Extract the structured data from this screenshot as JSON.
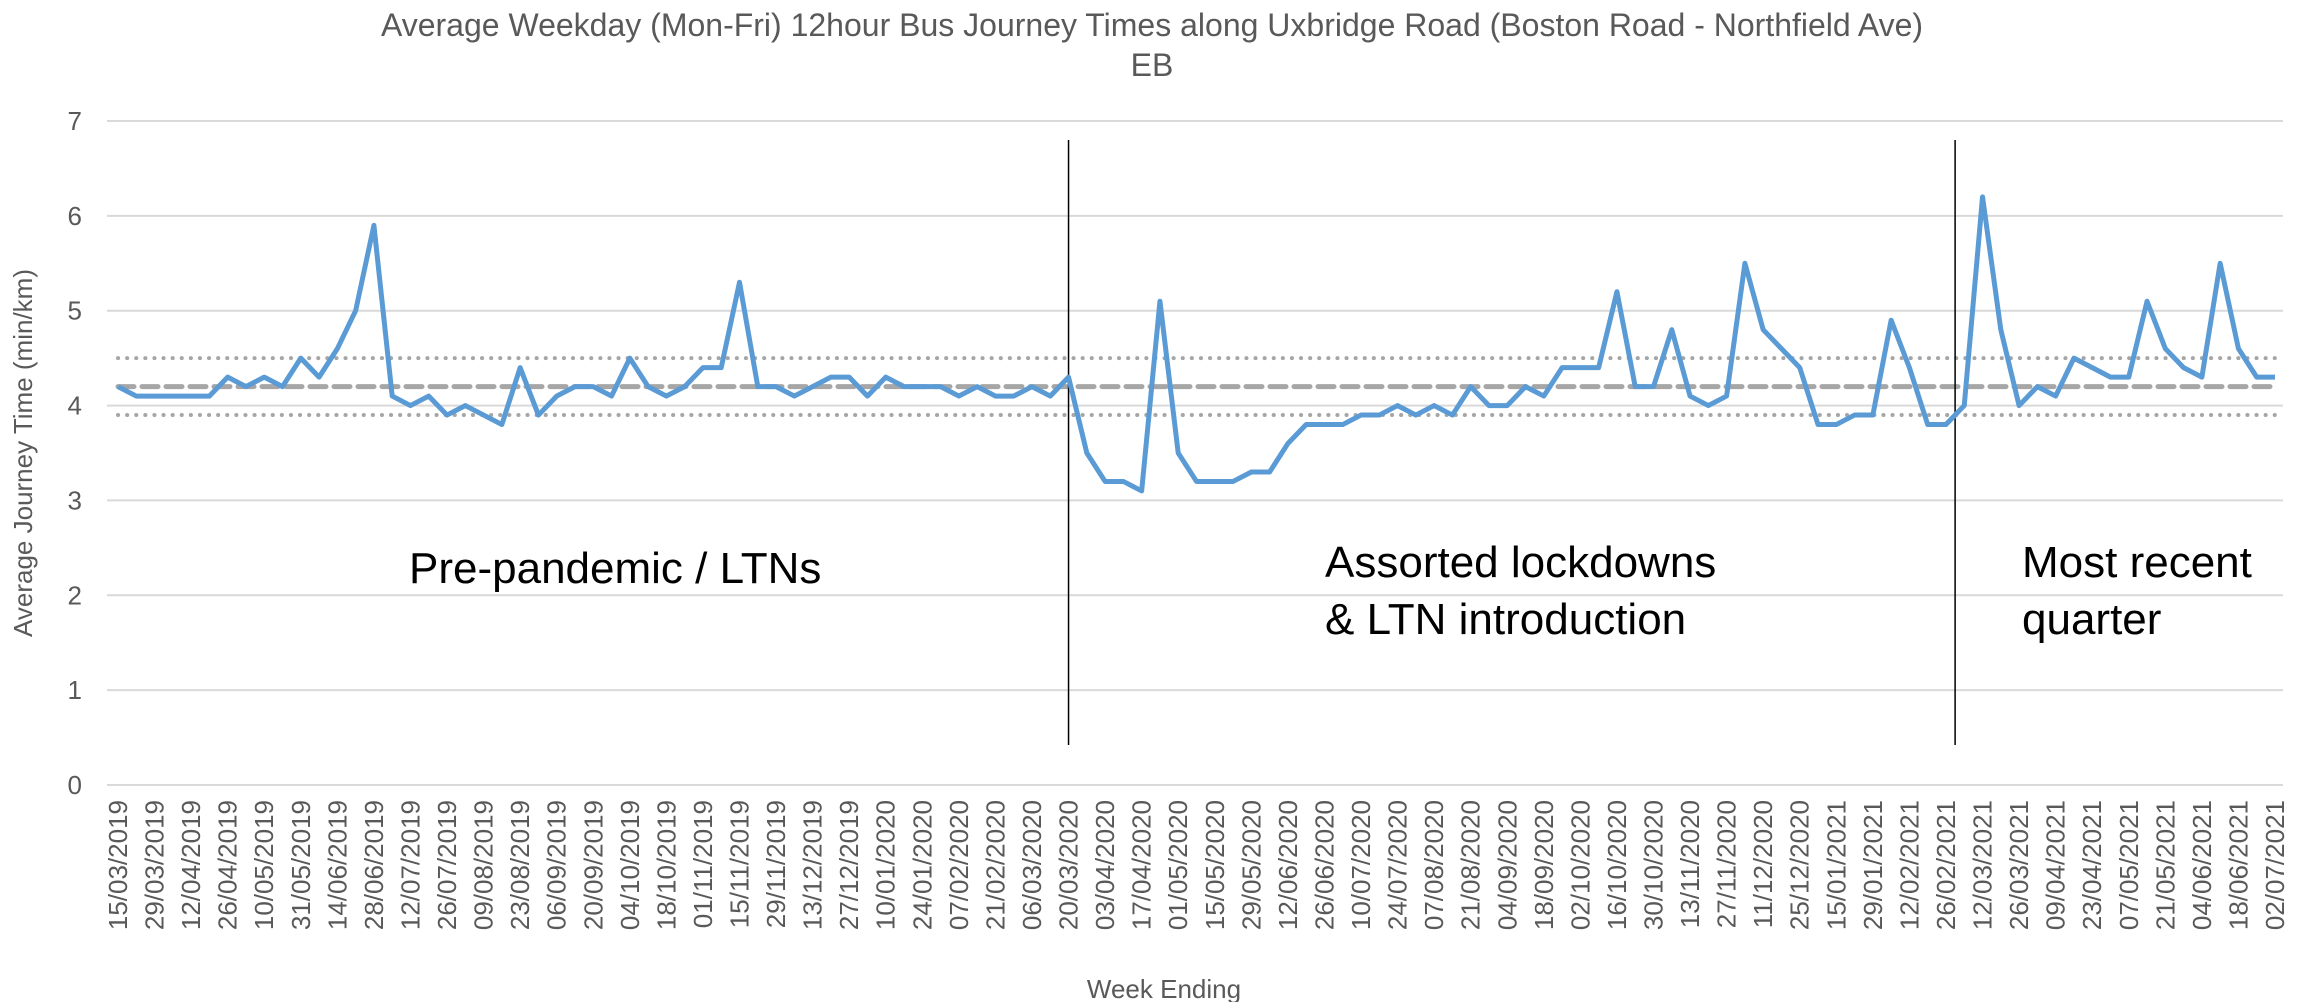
{
  "chart_data": {
    "type": "line",
    "title": [
      "Average Weekday (Mon-Fri) 12hour Bus Journey Times along Uxbridge Road (Boston Road - Northfield Ave)",
      "EB"
    ],
    "x_label": "Week Ending",
    "y_label": "Average Journey Time (min/km)",
    "categories": [
      "15/03/2019",
      null,
      "29/03/2019",
      null,
      "12/04/2019",
      null,
      "26/04/2019",
      null,
      "10/05/2019",
      null,
      "31/05/2019",
      null,
      "14/06/2019",
      null,
      "28/06/2019",
      null,
      "12/07/2019",
      null,
      "26/07/2019",
      null,
      "09/08/2019",
      null,
      "23/08/2019",
      null,
      "06/09/2019",
      null,
      "20/09/2019",
      null,
      "04/10/2019",
      null,
      "18/10/2019",
      null,
      "01/11/2019",
      null,
      "15/11/2019",
      null,
      "29/11/2019",
      null,
      "13/12/2019",
      null,
      "27/12/2019",
      null,
      "10/01/2020",
      null,
      "24/01/2020",
      null,
      "07/02/2020",
      null,
      "21/02/2020",
      null,
      "06/03/2020",
      null,
      "20/03/2020",
      null,
      "03/04/2020",
      null,
      "17/04/2020",
      null,
      "01/05/2020",
      null,
      "15/05/2020",
      null,
      "29/05/2020",
      null,
      "12/06/2020",
      null,
      "26/06/2020",
      null,
      "10/07/2020",
      null,
      "24/07/2020",
      null,
      "07/08/2020",
      null,
      "21/08/2020",
      null,
      "04/09/2020",
      null,
      "18/09/2020",
      null,
      "02/10/2020",
      null,
      "16/10/2020",
      null,
      "30/10/2020",
      null,
      "13/11/2020",
      null,
      "27/11/2020",
      null,
      "11/12/2020",
      null,
      "25/12/2020",
      null,
      "15/01/2021",
      null,
      "29/01/2021",
      null,
      "12/02/2021",
      null,
      "26/02/2021",
      null,
      "12/03/2021",
      null,
      "26/03/2021",
      null,
      "09/04/2021",
      null,
      "23/04/2021",
      null,
      "07/05/2021",
      null,
      "21/05/2021",
      null,
      "04/06/2021",
      null,
      "18/06/2021",
      null,
      "02/07/2021"
    ],
    "series": [
      {
        "color": "#5b9bd5",
        "values": [
          4.2,
          4.1,
          4.1,
          4.1,
          4.1,
          4.1,
          4.3,
          4.2,
          4.3,
          4.2,
          4.5,
          4.3,
          4.6,
          5.0,
          5.9,
          4.1,
          4.0,
          4.1,
          3.9,
          4.0,
          3.9,
          3.8,
          4.4,
          3.9,
          4.1,
          4.2,
          4.2,
          4.1,
          4.5,
          4.2,
          4.1,
          4.2,
          4.4,
          4.4,
          5.3,
          4.2,
          4.2,
          4.1,
          4.2,
          4.3,
          4.3,
          4.1,
          4.3,
          4.2,
          4.2,
          4.2,
          4.1,
          4.2,
          4.1,
          4.1,
          4.2,
          4.1,
          4.3,
          3.5,
          3.2,
          3.2,
          3.1,
          5.1,
          3.5,
          3.2,
          3.2,
          3.2,
          3.3,
          3.3,
          3.6,
          3.8,
          3.8,
          3.8,
          3.9,
          3.9,
          4.0,
          3.9,
          4.0,
          3.9,
          4.2,
          4.0,
          4.0,
          4.2,
          4.1,
          4.4,
          4.4,
          4.4,
          5.2,
          4.2,
          4.2,
          4.8,
          4.1,
          4.0,
          4.1,
          5.5,
          4.8,
          4.6,
          4.4,
          3.8,
          3.8,
          3.9,
          3.9,
          4.9,
          4.4,
          3.8,
          3.8,
          4.0,
          6.2,
          4.8,
          4.0,
          4.2,
          4.1,
          4.5,
          4.4,
          4.3,
          4.3,
          5.1,
          4.6,
          4.4,
          4.3,
          5.5,
          4.6,
          4.3,
          4.3
        ]
      }
    ],
    "reference_lines": [
      {
        "value": 4.5,
        "style": "dotted",
        "color": "#a6a6a6"
      },
      {
        "value": 4.2,
        "style": "dashed",
        "color": "#a6a6a6"
      },
      {
        "value": 3.9,
        "style": "dotted",
        "color": "#a6a6a6"
      }
    ],
    "dividers": [
      52,
      100.5
    ],
    "annotations": [
      [
        "Pre-pandemic / LTNs"
      ],
      [
        "Assorted lockdowns",
        "& LTN introduction"
      ],
      [
        "Most recent",
        "quarter"
      ]
    ],
    "ylim": [
      0,
      7
    ],
    "yticks": [
      0,
      1,
      2,
      3,
      4,
      5,
      6,
      7
    ],
    "grid": true
  }
}
